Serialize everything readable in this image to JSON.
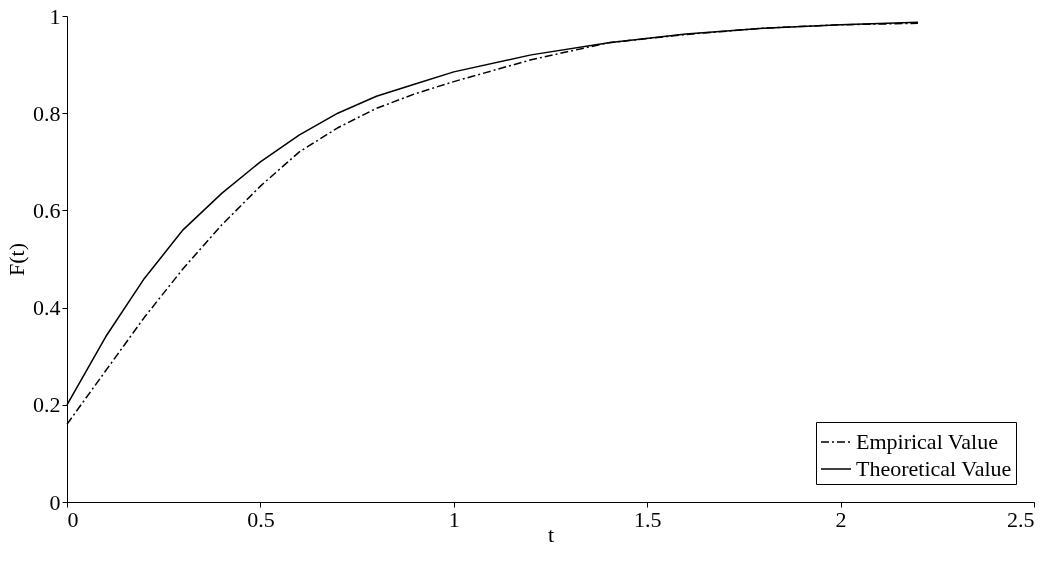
{
  "chart_data": {
    "type": "line",
    "xlabel": "t",
    "ylabel": "F(t)",
    "xlim": [
      0,
      2.5
    ],
    "xticks": [
      0,
      0.5,
      1,
      1.5,
      2,
      2.5
    ],
    "ylim": [
      0,
      1
    ],
    "yticks": [
      0,
      0.2,
      0.4,
      0.6,
      0.8,
      1
    ],
    "grid": false,
    "legend": "bottom right",
    "marker": "none",
    "series": [
      {
        "name": "Empirical Value",
        "color": "#000000",
        "line_style": "dashed",
        "x": [
          0,
          0.1,
          0.2,
          0.3,
          0.4,
          0.5,
          0.6,
          0.7,
          0.8,
          0.9,
          1.0,
          1.2,
          1.4,
          1.6,
          1.8,
          2.0,
          2.2
        ],
        "values": [
          0.16,
          0.27,
          0.38,
          0.48,
          0.57,
          0.65,
          0.72,
          0.77,
          0.81,
          0.84,
          0.865,
          0.91,
          0.945,
          0.962,
          0.975,
          0.982,
          0.985
        ]
      },
      {
        "name": "Theoretical Value",
        "color": "#000000",
        "line_style": "solid",
        "x": [
          0,
          0.1,
          0.2,
          0.3,
          0.4,
          0.5,
          0.6,
          0.7,
          0.8,
          0.9,
          1.0,
          1.2,
          1.4,
          1.6,
          1.8,
          2.0,
          2.2
        ],
        "values": [
          0.2,
          0.34,
          0.46,
          0.56,
          0.635,
          0.7,
          0.755,
          0.8,
          0.835,
          0.86,
          0.885,
          0.92,
          0.945,
          0.963,
          0.975,
          0.982,
          0.987
        ]
      }
    ]
  }
}
